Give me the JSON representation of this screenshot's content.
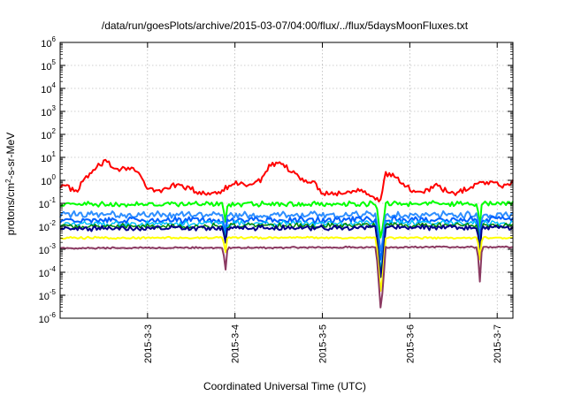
{
  "chart_data": {
    "type": "line",
    "title": "/data/run/goesPlots/archive/2015-03-07/04:00/flux/../flux/5daysMoonFluxes.txt",
    "xlabel": "Coordinated Universal Time (UTC)",
    "ylabel": "protons/cm2-s-sr-MeV",
    "ylabel_parts": {
      "pre": "protons/cm",
      "sup": "2",
      "post": "-s-sr-MeV"
    },
    "yscale": "log",
    "ylim_exp": [
      -6,
      6
    ],
    "y_tick_base": "10",
    "y_tick_exponents": [
      "-6",
      "-5",
      "-4",
      "-3",
      "-2",
      "-1",
      "0",
      "1",
      "2",
      "3",
      "4",
      "5",
      "6"
    ],
    "xlim_days": [
      2.0,
      7.18
    ],
    "x_ticks": [
      {
        "day": 3,
        "label": "2015-3-3"
      },
      {
        "day": 4,
        "label": "2015-3-4"
      },
      {
        "day": 5,
        "label": "2015-3-5"
      },
      {
        "day": 6,
        "label": "2015-3-6"
      },
      {
        "day": 7,
        "label": "2015-3-7"
      }
    ],
    "grid": true,
    "series": [
      {
        "color": "#ff0000",
        "width": 2,
        "base": 0.0,
        "anchors": [
          [
            2.0,
            -0.2
          ],
          [
            2.1,
            -0.3
          ],
          [
            2.2,
            -0.5
          ],
          [
            2.28,
            0.1
          ],
          [
            2.38,
            0.4
          ],
          [
            2.5,
            0.8
          ],
          [
            2.65,
            0.5
          ],
          [
            2.8,
            0.6
          ],
          [
            2.9,
            0.3
          ],
          [
            3.0,
            -0.4
          ],
          [
            3.15,
            -0.45
          ],
          [
            3.3,
            -0.2
          ],
          [
            3.45,
            -0.3
          ],
          [
            3.6,
            -0.6
          ],
          [
            3.8,
            -0.5
          ],
          [
            3.9,
            -0.3
          ],
          [
            4.0,
            -0.1
          ],
          [
            4.15,
            -0.2
          ],
          [
            4.3,
            0.0
          ],
          [
            4.4,
            0.6
          ],
          [
            4.5,
            0.7
          ],
          [
            4.6,
            0.5
          ],
          [
            4.75,
            0.1
          ],
          [
            4.9,
            -0.1
          ],
          [
            5.0,
            -0.5
          ],
          [
            5.15,
            -0.6
          ],
          [
            5.3,
            -0.5
          ],
          [
            5.45,
            -0.35
          ],
          [
            5.55,
            -0.6
          ],
          [
            5.63,
            -0.9
          ],
          [
            5.66,
            -1.0
          ],
          [
            5.72,
            0.3
          ],
          [
            5.82,
            0.2
          ],
          [
            5.9,
            -0.1
          ],
          [
            6.0,
            -0.4
          ],
          [
            6.15,
            -0.5
          ],
          [
            6.3,
            -0.2
          ],
          [
            6.5,
            -0.6
          ],
          [
            6.65,
            -0.4
          ],
          [
            6.8,
            -0.1
          ],
          [
            6.95,
            -0.05
          ],
          [
            7.05,
            -0.25
          ],
          [
            7.18,
            -0.1
          ]
        ],
        "noise": 0.14,
        "dips": []
      },
      {
        "color": "#00ff00",
        "width": 2,
        "base": -1.1,
        "anchors": [
          [
            2.0,
            -1.05
          ],
          [
            7.18,
            -1.0
          ]
        ],
        "noise": 0.12,
        "dips": [
          [
            3.89,
            -1.9
          ],
          [
            5.67,
            -2.6
          ],
          [
            6.8,
            -2.1
          ]
        ]
      },
      {
        "color": "#2f8fff",
        "width": 2,
        "base": -1.5,
        "anchors": [
          [
            2.0,
            -1.5
          ],
          [
            7.18,
            -1.5
          ]
        ],
        "noise": 0.16,
        "dips": [
          [
            3.89,
            -2.3
          ],
          [
            5.67,
            -3.2
          ],
          [
            6.8,
            -2.6
          ]
        ]
      },
      {
        "color": "#0060ff",
        "width": 2,
        "base": -1.75,
        "anchors": [
          [
            2.0,
            -1.75
          ],
          [
            7.18,
            -1.7
          ]
        ],
        "noise": 0.15,
        "dips": [
          [
            3.89,
            -2.5
          ],
          [
            5.67,
            -3.6
          ],
          [
            6.8,
            -2.8
          ]
        ]
      },
      {
        "color": "#00c0ff",
        "width": 1.5,
        "base": -1.9,
        "anchors": [
          [
            2.0,
            -1.9
          ],
          [
            7.18,
            -1.85
          ]
        ],
        "noise": 0.13,
        "dips": [
          [
            3.89,
            -2.6
          ],
          [
            5.67,
            -4.0
          ],
          [
            6.8,
            -3.0
          ]
        ]
      },
      {
        "color": "#008800",
        "width": 1.5,
        "base": -2.0,
        "anchors": [
          [
            2.0,
            -2.0
          ],
          [
            7.18,
            -1.95
          ]
        ],
        "noise": 0.12,
        "dips": [
          [
            3.89,
            -2.7
          ],
          [
            5.67,
            -4.2
          ],
          [
            6.8,
            -3.1
          ]
        ]
      },
      {
        "color": "#00008b",
        "width": 2,
        "base": -2.1,
        "anchors": [
          [
            2.0,
            -2.1
          ],
          [
            7.18,
            -2.05
          ]
        ],
        "noise": 0.12,
        "dips": [
          [
            3.89,
            -2.8
          ],
          [
            5.67,
            -4.4
          ],
          [
            6.8,
            -3.2
          ]
        ]
      },
      {
        "color": "#ffff00",
        "width": 2,
        "base": -2.5,
        "anchors": [
          [
            2.0,
            -2.5
          ],
          [
            7.18,
            -2.5
          ]
        ],
        "noise": 0.05,
        "dips": [
          [
            3.89,
            -3.2
          ],
          [
            5.67,
            -5.0
          ],
          [
            6.8,
            -3.5
          ]
        ]
      },
      {
        "color": "#8b3a62",
        "width": 2,
        "base": -2.95,
        "anchors": [
          [
            2.0,
            -2.95
          ],
          [
            7.18,
            -2.9
          ]
        ],
        "noise": 0.04,
        "dips": [
          [
            3.89,
            -4.0
          ],
          [
            5.67,
            -5.75
          ],
          [
            6.8,
            -4.5
          ]
        ]
      }
    ]
  }
}
